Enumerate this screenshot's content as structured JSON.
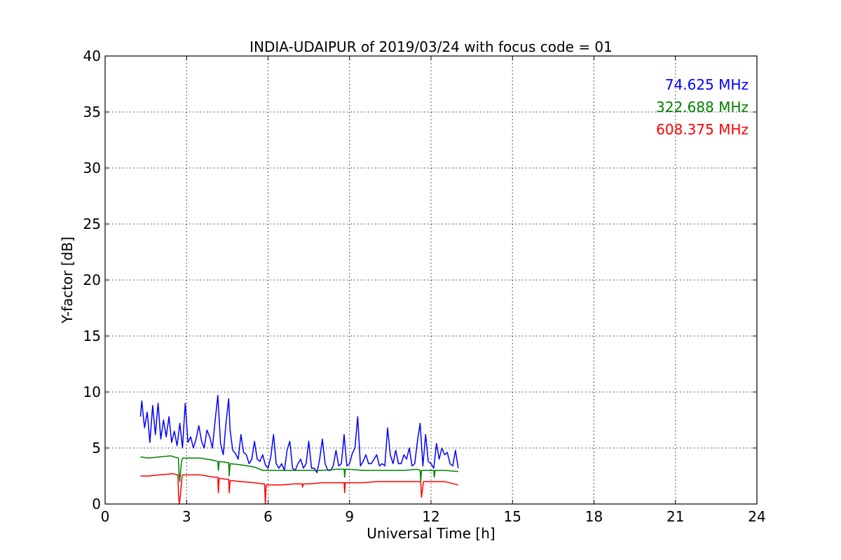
{
  "chart_data": {
    "type": "line",
    "title": "INDIA-UDAIPUR of 2019/03/24 with focus code = 01",
    "xlabel": "Universal Time [h]",
    "ylabel": "Y-factor [dB]",
    "xlim": [
      0,
      24
    ],
    "ylim": [
      0,
      40
    ],
    "xticks": [
      0,
      3,
      6,
      9,
      12,
      15,
      18,
      21,
      24
    ],
    "yticks": [
      0,
      5,
      10,
      15,
      20,
      25,
      30,
      35,
      40
    ],
    "grid": true,
    "legend_position": "top-right",
    "series": [
      {
        "name": "74.625 MHz",
        "color": "#0000ff",
        "x": [
          1.3,
          1.35,
          1.45,
          1.55,
          1.65,
          1.75,
          1.85,
          1.95,
          2.05,
          2.15,
          2.25,
          2.35,
          2.45,
          2.55,
          2.65,
          2.75,
          2.85,
          2.95,
          3.05,
          3.15,
          3.25,
          3.35,
          3.45,
          3.55,
          3.65,
          3.75,
          3.85,
          3.95,
          4.05,
          4.15,
          4.25,
          4.35,
          4.45,
          4.55,
          4.6,
          4.7,
          4.8,
          4.9,
          5.0,
          5.1,
          5.2,
          5.3,
          5.4,
          5.5,
          5.6,
          5.7,
          5.8,
          5.9,
          6.0,
          6.1,
          6.2,
          6.3,
          6.4,
          6.5,
          6.6,
          6.7,
          6.8,
          6.9,
          7.0,
          7.1,
          7.2,
          7.3,
          7.4,
          7.5,
          7.6,
          7.7,
          7.8,
          7.9,
          8.0,
          8.1,
          8.2,
          8.3,
          8.4,
          8.5,
          8.6,
          8.7,
          8.8,
          8.9,
          9.0,
          9.1,
          9.2,
          9.3,
          9.4,
          9.5,
          9.6,
          9.7,
          9.8,
          9.9,
          10.0,
          10.1,
          10.2,
          10.3,
          10.4,
          10.5,
          10.6,
          10.7,
          10.8,
          10.9,
          11.0,
          11.1,
          11.2,
          11.3,
          11.4,
          11.5,
          11.6,
          11.7,
          11.8,
          11.9,
          12.0,
          12.1,
          12.2,
          12.3,
          12.4,
          12.5,
          12.6,
          12.7,
          12.8,
          12.9,
          13.0
        ],
        "y": [
          7.8,
          9.2,
          6.8,
          8.2,
          5.5,
          8.8,
          6.2,
          9.0,
          5.8,
          7.5,
          6.0,
          7.8,
          5.5,
          6.5,
          5.2,
          7.2,
          5.0,
          9.0,
          5.5,
          6.0,
          5.0,
          5.8,
          7.0,
          5.6,
          5.0,
          6.6,
          6.0,
          5.0,
          7.4,
          9.7,
          5.4,
          4.4,
          7.2,
          9.4,
          6.6,
          4.8,
          4.5,
          4.0,
          6.2,
          4.6,
          4.4,
          3.6,
          4.0,
          5.6,
          4.0,
          3.8,
          4.4,
          3.5,
          3.2,
          4.2,
          6.2,
          3.6,
          3.2,
          3.6,
          3.0,
          4.8,
          5.6,
          3.2,
          3.0,
          3.6,
          4.0,
          3.2,
          3.6,
          5.6,
          3.2,
          3.2,
          2.8,
          4.0,
          5.8,
          3.6,
          3.0,
          3.0,
          3.4,
          4.8,
          3.4,
          3.6,
          6.2,
          3.4,
          3.6,
          4.5,
          5.0,
          7.8,
          3.4,
          3.8,
          4.4,
          3.6,
          3.6,
          4.0,
          4.4,
          3.4,
          3.6,
          3.4,
          6.8,
          4.4,
          3.6,
          4.8,
          3.6,
          3.6,
          4.4,
          4.0,
          5.0,
          3.4,
          3.6,
          5.6,
          7.2,
          3.4,
          6.2,
          3.8,
          3.6,
          3.2,
          5.4,
          4.0,
          5.0,
          4.4,
          4.6,
          3.6,
          3.4,
          4.8,
          3.2
        ]
      },
      {
        "name": "322.688 MHz",
        "color": "#008000",
        "x": [
          1.3,
          1.6,
          2.0,
          2.4,
          2.7,
          2.72,
          2.75,
          2.78,
          2.82,
          2.86,
          3.0,
          3.5,
          4.0,
          4.15,
          4.17,
          4.2,
          4.5,
          4.55,
          4.57,
          4.6,
          5.0,
          5.5,
          5.8,
          6.0,
          6.5,
          7.0,
          7.5,
          8.0,
          8.5,
          8.8,
          8.82,
          8.84,
          9.0,
          9.5,
          10.0,
          10.5,
          11.0,
          11.5,
          11.6,
          11.62,
          11.65,
          12.0,
          12.1,
          12.12,
          12.15,
          12.5,
          13.0
        ],
        "y": [
          4.2,
          4.1,
          4.2,
          4.3,
          4.1,
          2.8,
          2.0,
          3.0,
          3.9,
          4.1,
          4.1,
          4.1,
          3.9,
          3.8,
          3.0,
          3.8,
          3.7,
          3.7,
          2.5,
          3.6,
          3.5,
          3.3,
          3.0,
          3.0,
          3.0,
          3.0,
          3.0,
          3.0,
          3.1,
          3.1,
          2.4,
          3.1,
          3.1,
          3.0,
          3.0,
          3.0,
          3.0,
          3.1,
          3.0,
          2.0,
          3.0,
          3.0,
          3.0,
          2.4,
          3.0,
          3.0,
          2.9
        ]
      },
      {
        "name": "608.375 MHz",
        "color": "#ff0000",
        "x": [
          1.3,
          1.6,
          2.0,
          2.5,
          2.68,
          2.7,
          2.73,
          2.76,
          2.8,
          2.84,
          3.0,
          3.5,
          4.0,
          4.15,
          4.17,
          4.2,
          4.5,
          4.55,
          4.57,
          4.6,
          5.0,
          5.5,
          5.8,
          5.87,
          5.9,
          5.93,
          6.0,
          6.5,
          7.0,
          7.25,
          7.27,
          7.3,
          7.5,
          8.0,
          8.5,
          8.8,
          8.82,
          8.84,
          9.0,
          9.5,
          10.0,
          10.5,
          11.0,
          11.5,
          11.62,
          11.65,
          11.68,
          11.72,
          12.0,
          12.5,
          13.0
        ],
        "y": [
          2.5,
          2.5,
          2.6,
          2.7,
          2.6,
          1.0,
          0.0,
          0.5,
          1.5,
          2.6,
          2.6,
          2.6,
          2.4,
          2.4,
          1.0,
          2.3,
          2.2,
          2.2,
          1.0,
          2.1,
          2.0,
          1.9,
          1.8,
          1.8,
          0.0,
          1.7,
          1.7,
          1.7,
          1.8,
          1.8,
          1.5,
          1.8,
          1.8,
          1.9,
          1.9,
          1.9,
          1.0,
          1.9,
          1.9,
          1.9,
          2.0,
          2.0,
          2.0,
          2.0,
          2.0,
          0.6,
          1.2,
          2.0,
          2.0,
          2.0,
          1.7
        ]
      }
    ]
  }
}
